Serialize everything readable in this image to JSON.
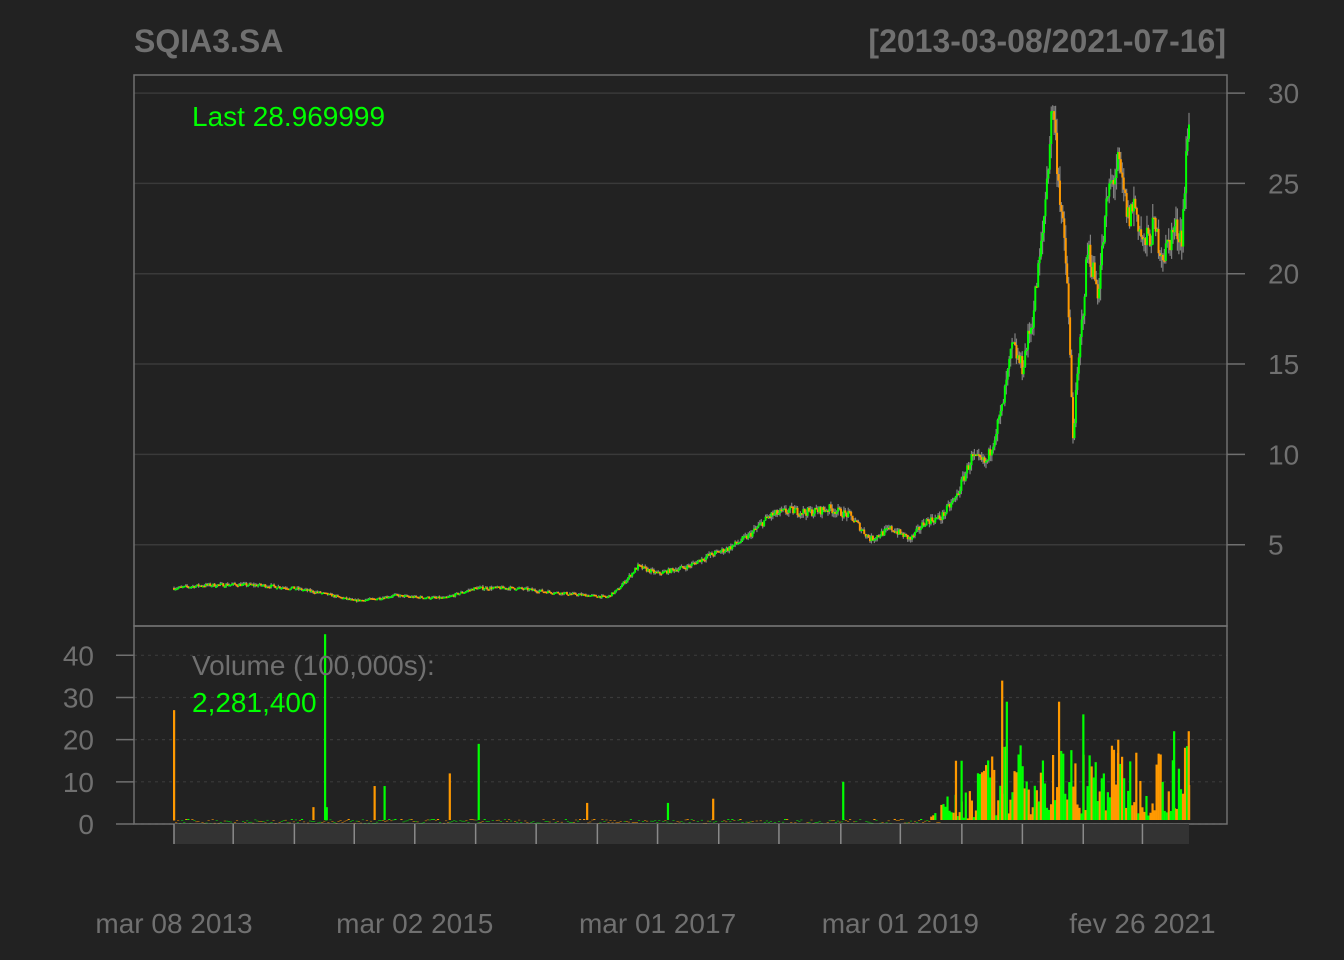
{
  "chart_data": {
    "type": "line",
    "title": "SQIA3.SA",
    "date_range": "[2013-03-08/2021-07-16]",
    "last_label": "Last 28.969999",
    "volume_caption": "Volume (100,000s):",
    "volume_last": "2,281,400",
    "grid": true,
    "colors": {
      "background": "#222222",
      "up": "#00ff00",
      "down": "#ff9900",
      "wick": "#808080",
      "grid": "#3a3a3a",
      "frame": "#707070",
      "text": "#707070"
    },
    "price_axis": {
      "ylim": [
        0.5,
        31
      ],
      "ticks": [
        5,
        10,
        15,
        20,
        25,
        30
      ]
    },
    "volume_axis": {
      "ylim": [
        0,
        46
      ],
      "ticks": [
        0,
        10,
        20,
        30,
        40
      ]
    },
    "x_tick_labels": [
      {
        "date": "2013-03-08",
        "label": "mar 08 2013"
      },
      {
        "date": "2015-03-02",
        "label": "mar 02 2015"
      },
      {
        "date": "2017-03-01",
        "label": "mar 01 2017"
      },
      {
        "date": "2019-03-01",
        "label": "mar 01 2019"
      },
      {
        "date": "2021-02-26",
        "label": "fev 26 2021"
      }
    ],
    "x_minor_ticks": [
      "2013-03-08",
      "2013-09-02",
      "2014-03-05",
      "2014-09-01",
      "2015-03-02",
      "2015-09-01",
      "2016-03-01",
      "2016-09-01",
      "2017-03-01",
      "2017-09-01",
      "2018-03-01",
      "2018-09-03",
      "2019-03-01",
      "2019-09-02",
      "2020-03-02",
      "2020-09-01",
      "2021-02-26"
    ],
    "price_series": [
      {
        "date": "2013-03-08",
        "close": 2.6
      },
      {
        "date": "2013-06-01",
        "close": 2.75
      },
      {
        "date": "2013-09-01",
        "close": 2.8
      },
      {
        "date": "2013-12-01",
        "close": 2.75
      },
      {
        "date": "2014-03-01",
        "close": 2.6
      },
      {
        "date": "2014-06-01",
        "close": 2.3
      },
      {
        "date": "2014-09-01",
        "close": 1.9
      },
      {
        "date": "2014-11-01",
        "close": 2.0
      },
      {
        "date": "2015-01-01",
        "close": 2.2
      },
      {
        "date": "2015-03-01",
        "close": 2.1
      },
      {
        "date": "2015-06-01",
        "close": 2.05
      },
      {
        "date": "2015-09-01",
        "close": 2.6
      },
      {
        "date": "2016-01-01",
        "close": 2.6
      },
      {
        "date": "2016-04-01",
        "close": 2.4
      },
      {
        "date": "2016-08-01",
        "close": 2.2
      },
      {
        "date": "2016-10-01",
        "close": 2.1
      },
      {
        "date": "2016-11-01",
        "close": 2.5
      },
      {
        "date": "2017-01-01",
        "close": 3.8
      },
      {
        "date": "2017-03-01",
        "close": 3.4
      },
      {
        "date": "2017-06-01",
        "close": 3.8
      },
      {
        "date": "2017-08-01",
        "close": 4.4
      },
      {
        "date": "2017-10-01",
        "close": 4.8
      },
      {
        "date": "2017-12-01",
        "close": 5.5
      },
      {
        "date": "2018-02-01",
        "close": 6.6
      },
      {
        "date": "2018-04-01",
        "close": 6.9
      },
      {
        "date": "2018-06-01",
        "close": 6.8
      },
      {
        "date": "2018-08-01",
        "close": 7.0
      },
      {
        "date": "2018-10-01",
        "close": 6.6
      },
      {
        "date": "2018-12-01",
        "close": 5.3
      },
      {
        "date": "2019-02-01",
        "close": 5.9
      },
      {
        "date": "2019-04-01",
        "close": 5.3
      },
      {
        "date": "2019-05-15",
        "close": 6.3
      },
      {
        "date": "2019-07-01",
        "close": 6.5
      },
      {
        "date": "2019-08-15",
        "close": 7.6
      },
      {
        "date": "2019-10-01",
        "close": 9.8
      },
      {
        "date": "2019-11-15",
        "close": 9.5
      },
      {
        "date": "2020-01-01",
        "close": 12.5
      },
      {
        "date": "2020-02-01",
        "close": 16.0
      },
      {
        "date": "2020-03-01",
        "close": 14.8
      },
      {
        "date": "2020-04-01",
        "close": 17.5
      },
      {
        "date": "2020-05-01",
        "close": 22.0
      },
      {
        "date": "2020-06-01",
        "close": 29.5
      },
      {
        "date": "2020-06-20",
        "close": 25.0
      },
      {
        "date": "2020-07-15",
        "close": 19.5
      },
      {
        "date": "2020-08-01",
        "close": 11.0
      },
      {
        "date": "2020-08-20",
        "close": 15.5
      },
      {
        "date": "2020-09-15",
        "close": 21.5
      },
      {
        "date": "2020-10-15",
        "close": 19.0
      },
      {
        "date": "2020-11-15",
        "close": 24.5
      },
      {
        "date": "2020-12-15",
        "close": 26.0
      },
      {
        "date": "2021-01-15",
        "close": 23.0
      },
      {
        "date": "2021-02-01",
        "close": 24.0
      },
      {
        "date": "2021-03-01",
        "close": 21.5
      },
      {
        "date": "2021-04-01",
        "close": 22.5
      },
      {
        "date": "2021-05-01",
        "close": 21.0
      },
      {
        "date": "2021-06-01",
        "close": 22.5
      },
      {
        "date": "2021-06-25",
        "close": 22.2
      },
      {
        "date": "2021-07-05",
        "close": 25.5
      },
      {
        "date": "2021-07-16",
        "close": 28.97
      }
    ],
    "volume_spikes": [
      {
        "date": "2013-03-08",
        "value": 27
      },
      {
        "date": "2014-06-05",
        "value": 45
      },
      {
        "date": "2014-05-01",
        "value": 4
      },
      {
        "date": "2014-06-10",
        "value": 4
      },
      {
        "date": "2014-11-01",
        "value": 9
      },
      {
        "date": "2014-12-01",
        "value": 9
      },
      {
        "date": "2015-06-15",
        "value": 12
      },
      {
        "date": "2015-09-10",
        "value": 19
      },
      {
        "date": "2016-08-01",
        "value": 5
      },
      {
        "date": "2017-04-01",
        "value": 5
      },
      {
        "date": "2017-08-15",
        "value": 6
      },
      {
        "date": "2018-09-10",
        "value": 10
      },
      {
        "date": "2019-08-15",
        "value": 15
      },
      {
        "date": "2019-09-01",
        "value": 15
      },
      {
        "date": "2020-01-01",
        "value": 34
      },
      {
        "date": "2020-01-15",
        "value": 29
      },
      {
        "date": "2020-06-20",
        "value": 29
      },
      {
        "date": "2020-09-01",
        "value": 26
      },
      {
        "date": "2020-12-15",
        "value": 20
      },
      {
        "date": "2021-06-01",
        "value": 22
      },
      {
        "date": "2021-07-15",
        "value": 22
      }
    ]
  }
}
